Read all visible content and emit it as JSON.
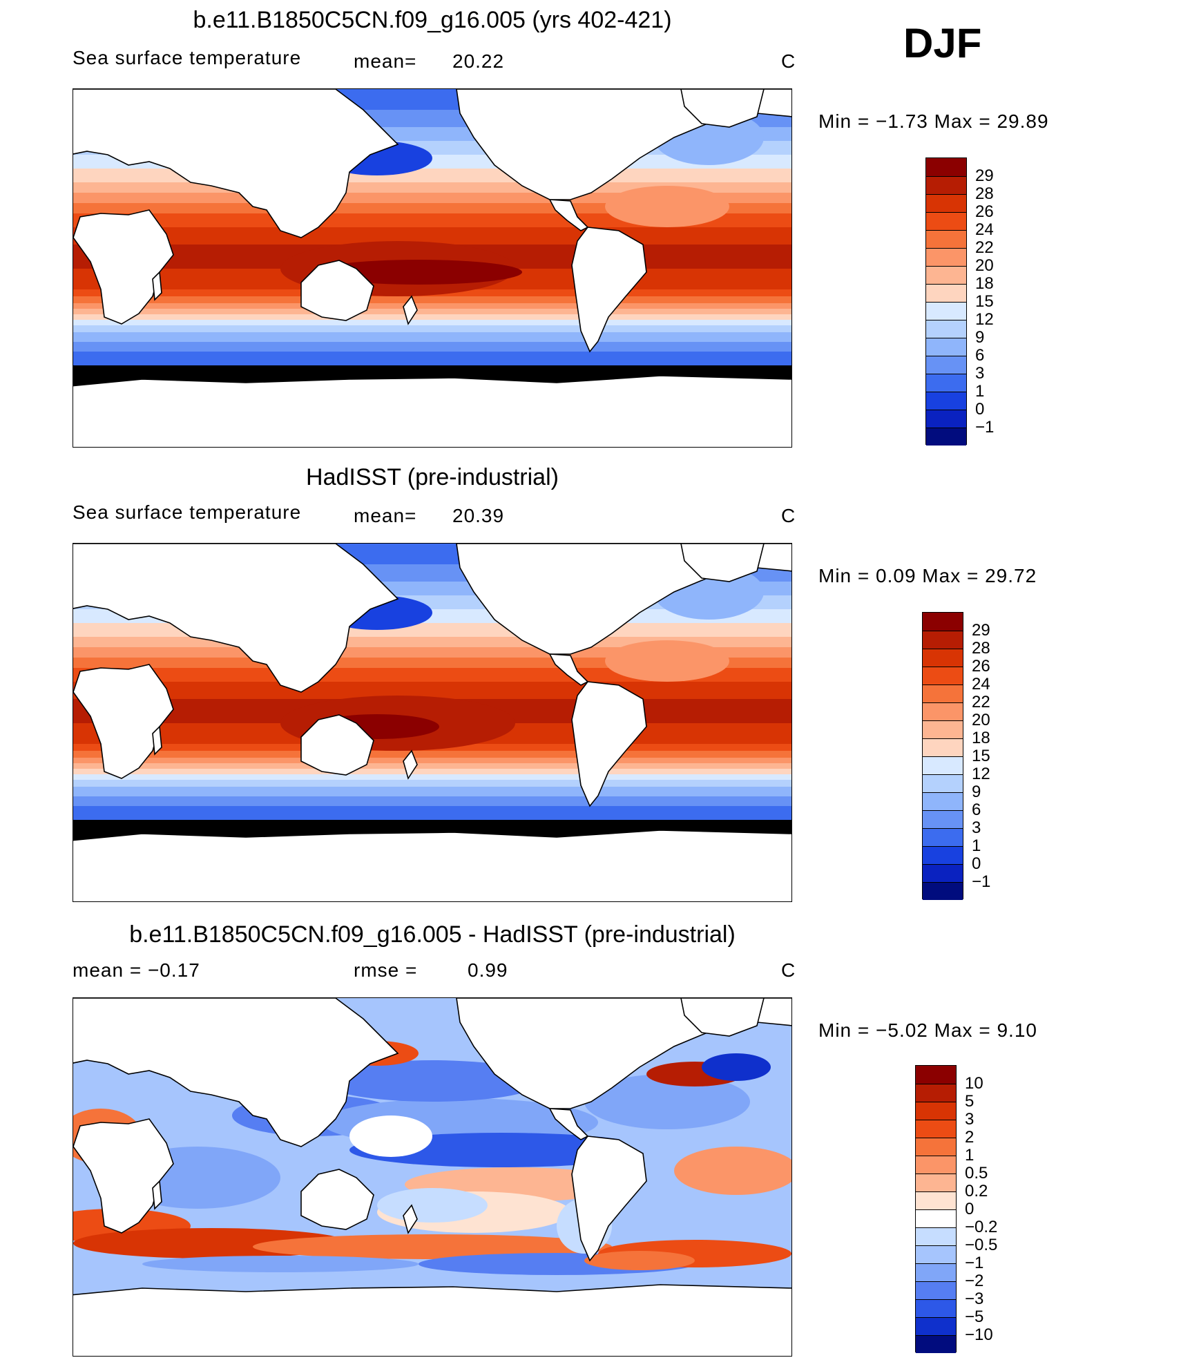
{
  "season": "DJF",
  "panels": [
    {
      "title": "b.e11.B1850C5CN.f09_g16.005 (yrs 402-421)",
      "left_label": "Sea surface temperature",
      "mid_label": "mean=",
      "mid_value": "20.22",
      "unit": "C",
      "minmax": "Min =   −1.73  Max =   29.89",
      "colorbar": {
        "labels": [
          "29",
          "28",
          "26",
          "24",
          "22",
          "20",
          "18",
          "15",
          "12",
          "9",
          "6",
          "3",
          "1",
          "0",
          "−1"
        ],
        "colors": [
          "#8b0000",
          "#b61d03",
          "#d83404",
          "#ec4c14",
          "#f5733a",
          "#fb9568",
          "#fdb592",
          "#fed5bf",
          "#d8e9ff",
          "#b4d1fd",
          "#8fb5fb",
          "#6792f5",
          "#3c6cef",
          "#1841e0",
          "#0a22c0",
          "#010c7e"
        ]
      },
      "map_kind": "sst"
    },
    {
      "title": "HadISST (pre-industrial)",
      "left_label": "Sea surface temperature",
      "mid_label": "mean=",
      "mid_value": "20.39",
      "unit": "C",
      "minmax": "Min =    0.09  Max =   29.72",
      "colorbar": {
        "labels": [
          "29",
          "28",
          "26",
          "24",
          "22",
          "20",
          "18",
          "15",
          "12",
          "9",
          "6",
          "3",
          "1",
          "0",
          "−1"
        ],
        "colors": [
          "#8b0000",
          "#b61d03",
          "#d83404",
          "#ec4c14",
          "#f5733a",
          "#fb9568",
          "#fdb592",
          "#fed5bf",
          "#d8e9ff",
          "#b4d1fd",
          "#8fb5fb",
          "#6792f5",
          "#3c6cef",
          "#1841e0",
          "#0a22c0",
          "#010c7e"
        ]
      },
      "map_kind": "sst2"
    },
    {
      "title": "b.e11.B1850C5CN.f09_g16.005 - HadISST (pre-industrial)",
      "left_label": "mean =    −0.17",
      "mid_label": "rmse =",
      "mid_value": "0.99",
      "unit": "C",
      "minmax": "Min =   −5.02  Max =     9.10",
      "colorbar": {
        "labels": [
          "10",
          "5",
          "3",
          "2",
          "1",
          "0.5",
          "0.2",
          "0",
          "−0.2",
          "−0.5",
          "−1",
          "−2",
          "−3",
          "−5",
          "−10"
        ],
        "colors": [
          "#8b0000",
          "#b61d03",
          "#d83404",
          "#ec4c14",
          "#f5733a",
          "#fb9568",
          "#fdb592",
          "#fee3d2",
          "#ffffff",
          "#c6ddff",
          "#a6c5fd",
          "#80a6f8",
          "#567ef2",
          "#2d58e8",
          "#0f30cc",
          "#010c7e"
        ]
      },
      "map_kind": "diff"
    }
  ]
}
